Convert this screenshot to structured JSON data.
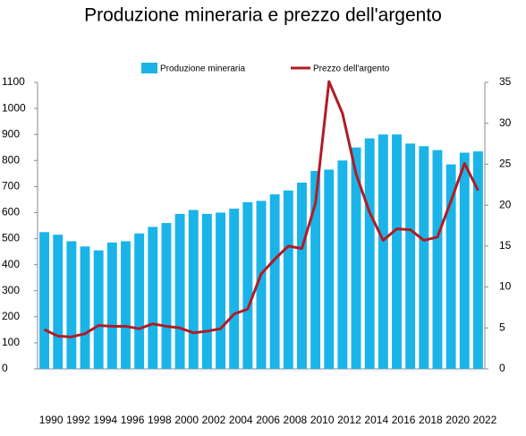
{
  "chart_data": {
    "type": "bar-line",
    "title": "Produzione mineraria e prezzo dell'argento",
    "categories": [
      "1990",
      null,
      "1992",
      null,
      "1994",
      null,
      "1996",
      null,
      "1998",
      null,
      "2000",
      null,
      "2002",
      null,
      "2004",
      null,
      "2006",
      null,
      "2008",
      null,
      "2010",
      null,
      "2012",
      null,
      "2014",
      null,
      "2016",
      null,
      "2018",
      null,
      "2020",
      null,
      "2022"
    ],
    "series": [
      {
        "name": "Produzione mineraria",
        "color": "#1ab4e8",
        "type": "bar",
        "values": [
          525,
          515,
          490,
          470,
          455,
          485,
          490,
          520,
          545,
          560,
          595,
          610,
          595,
          600,
          615,
          640,
          645,
          670,
          685,
          715,
          760,
          765,
          800,
          850,
          885,
          900,
          900,
          865,
          855,
          840,
          785,
          830,
          835
        ]
      },
      {
        "name": "Prezzo dell'argento",
        "color": "#b01c24",
        "type": "line",
        "axis": "y2",
        "values": [
          4.8,
          4.0,
          3.9,
          4.3,
          5.3,
          5.2,
          5.2,
          4.9,
          5.5,
          5.2,
          5.0,
          4.4,
          4.6,
          4.9,
          6.7,
          7.3,
          11.6,
          13.4,
          15.0,
          14.7,
          20.2,
          35.1,
          31.2,
          23.8,
          19.1,
          15.7,
          17.1,
          17.0,
          15.7,
          16.1,
          20.5,
          25.1,
          21.8
        ]
      }
    ],
    "ylim": [
      0,
      1100
    ],
    "yticks": [
      0,
      100,
      200,
      300,
      400,
      500,
      600,
      700,
      800,
      900,
      1000,
      1100
    ],
    "y2lim": [
      0,
      35
    ],
    "y2ticks": [
      0,
      5,
      10,
      15,
      20,
      25,
      30,
      35
    ],
    "legend": "top"
  }
}
